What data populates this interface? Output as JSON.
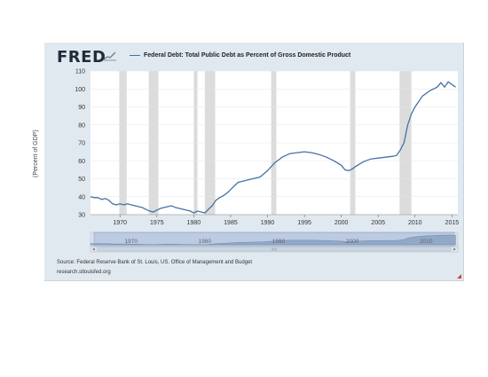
{
  "brand": {
    "logo_text": "FRED",
    "mark_icon": "fred-graph-mark-icon"
  },
  "legend": {
    "label": "Federal Debt: Total Public Debt as Percent of Gross Domestic Product",
    "color": "#4572a7"
  },
  "footer": {
    "source": "Source: Federal Reserve Bank of St. Louis, US. Office of Management and Budget",
    "site": "research.stlouisfed.org"
  },
  "navigator": {
    "labels": [
      "1970",
      "1980",
      "1990",
      "2000",
      "2010"
    ],
    "left_arrow_icon": "chevron-left-icon",
    "right_arrow_icon": "chevron-right-icon",
    "grip_icon": "scroll-grip-icon"
  },
  "chart_data": {
    "type": "line",
    "title": "",
    "xlabel": "",
    "ylabel": "(Percent of GDP)",
    "xlim": [
      1966,
      2015.8
    ],
    "ylim": [
      30,
      110
    ],
    "yticks": [
      30,
      40,
      50,
      60,
      70,
      80,
      90,
      100,
      110
    ],
    "xticks": [
      1970,
      1975,
      1980,
      1985,
      1990,
      1995,
      2000,
      2005,
      2010,
      2015
    ],
    "grid": "horizontal",
    "legend_position": "top",
    "recessions": [
      [
        1969.9,
        1970.9
      ],
      [
        1973.9,
        1975.2
      ],
      [
        1980.0,
        1980.5
      ],
      [
        1981.5,
        1982.9
      ],
      [
        1990.5,
        1991.2
      ],
      [
        2001.2,
        2001.9
      ],
      [
        2007.9,
        2009.5
      ]
    ],
    "recession_color": "#dcdcdc",
    "series": [
      {
        "name": "Federal Debt: Total Public Debt as Percent of Gross Domestic Product",
        "color": "#4572a7",
        "x": [
          1966,
          1966.5,
          1967,
          1967.5,
          1968,
          1968.5,
          1969,
          1969.5,
          1970,
          1970.5,
          1971,
          1971.5,
          1972,
          1972.5,
          1973,
          1973.5,
          1974,
          1974.5,
          1975,
          1975.5,
          1976,
          1976.5,
          1977,
          1977.5,
          1978,
          1978.5,
          1979,
          1979.5,
          1980,
          1980.5,
          1981,
          1981.5,
          1982,
          1982.5,
          1983,
          1983.5,
          1984,
          1984.5,
          1985,
          1985.5,
          1986,
          1987,
          1988,
          1989,
          1990,
          1991,
          1992,
          1993,
          1994,
          1995,
          1996,
          1997,
          1998,
          1999,
          2000,
          2000.5,
          2001,
          2001.5,
          2002,
          2003,
          2004,
          2005,
          2006,
          2007,
          2007.5,
          2008,
          2008.5,
          2009,
          2009.5,
          2010,
          2011,
          2012,
          2013,
          2013.5,
          2014,
          2014.5,
          2015,
          2015.5
        ],
        "values": [
          40,
          39.5,
          39.5,
          38.5,
          39,
          38,
          36,
          35.5,
          36,
          35.5,
          36,
          35.5,
          35,
          34.5,
          34,
          33,
          32,
          31.5,
          32.5,
          33.5,
          34,
          34.5,
          35,
          34,
          33.5,
          33,
          32.5,
          32,
          31,
          32,
          31.5,
          31,
          33,
          35,
          38,
          39.5,
          40.5,
          42,
          44,
          46,
          48,
          49,
          50,
          51,
          54.5,
          59,
          62,
          64,
          64.5,
          65,
          64.5,
          63.5,
          62,
          60,
          57.5,
          55,
          54.5,
          55.5,
          57,
          59.5,
          61,
          61.5,
          62,
          62.5,
          63,
          66,
          70,
          80,
          86,
          90,
          96,
          99,
          101,
          103.5,
          101,
          104,
          102.5,
          101
        ]
      }
    ]
  }
}
